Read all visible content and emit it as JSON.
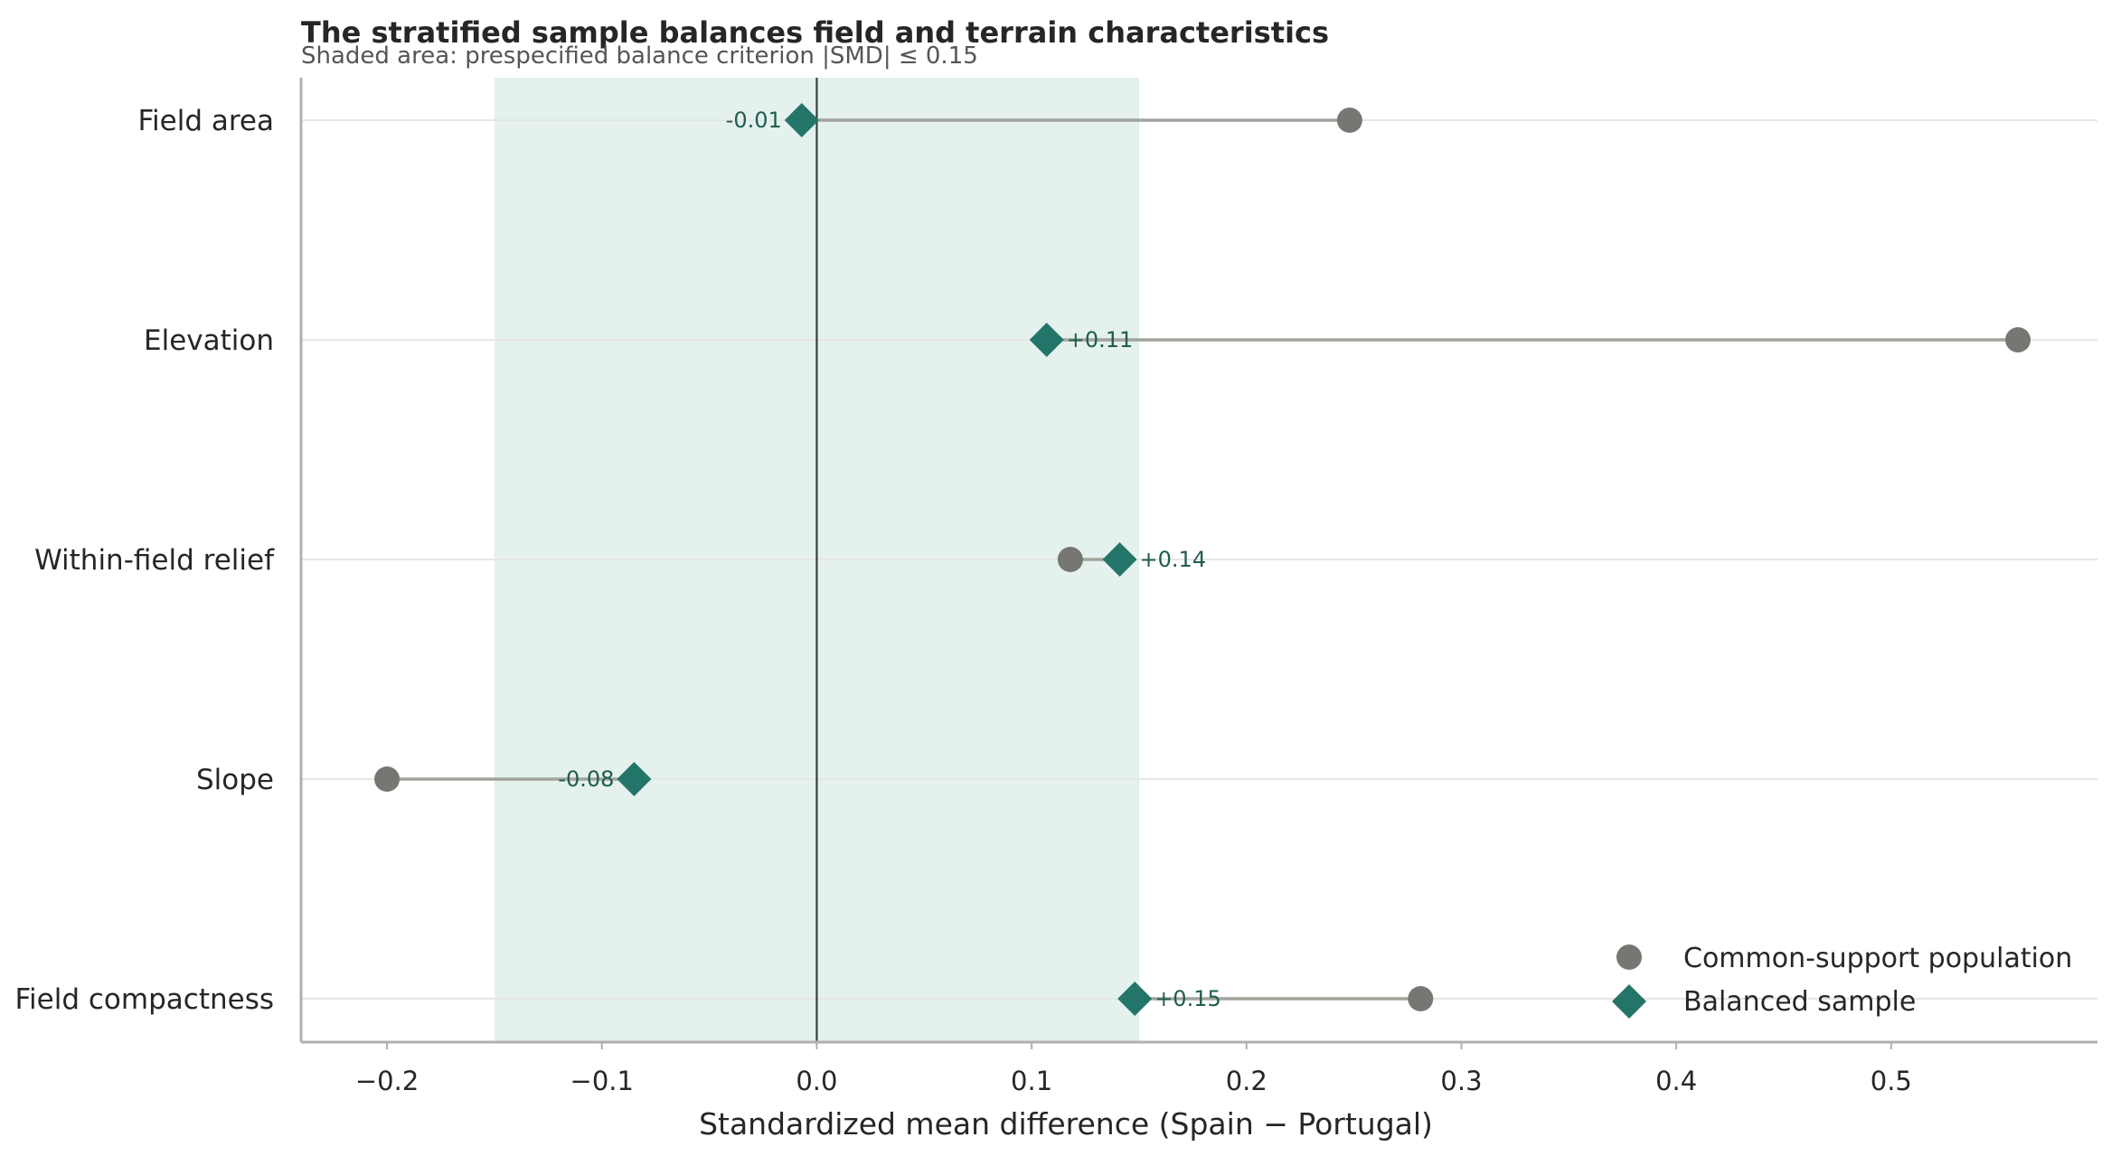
{
  "chart_data": {
    "type": "scatter",
    "title": "The stratified sample balances field and terrain characteristics",
    "subtitle": "Shaded area: prespecified balance criterion |SMD| ≤ 0.15",
    "xlabel": "Standardized mean difference (Spain − Portugal)",
    "ylabel": "",
    "xlim": [
      -0.24,
      0.596
    ],
    "xticks": [
      -0.2,
      -0.1,
      0.0,
      0.1,
      0.2,
      0.3,
      0.4,
      0.5
    ],
    "xtick_labels": [
      "−0.2",
      "−0.1",
      "0.0",
      "0.1",
      "0.2",
      "0.3",
      "0.4",
      "0.5"
    ],
    "balance_band": [
      -0.15,
      0.15
    ],
    "reference_line": 0.0,
    "categories": [
      "Field area",
      "Elevation",
      "Within-field relief",
      "Slope",
      "Field compactness"
    ],
    "series": [
      {
        "name": "Common-support population",
        "marker": "circle",
        "color": "#767672",
        "values": [
          0.248,
          0.559,
          0.118,
          -0.2,
          0.281
        ]
      },
      {
        "name": "Balanced sample",
        "marker": "diamond",
        "color": "#23756a",
        "values": [
          -0.007,
          0.107,
          0.141,
          -0.085,
          0.148
        ],
        "labels": [
          "-0.01",
          "+0.11",
          "+0.14",
          "-0.08",
          "+0.15"
        ]
      }
    ],
    "legend_position": "bottom-right",
    "grid": "horizontal",
    "colors": {
      "band": "#e4f1ec",
      "connector": "#a1a49c",
      "zero_line": "#3a3f3c",
      "axis": "#b0b0b0",
      "grid": "#e6e6e6",
      "label": "#1f5c50"
    }
  }
}
